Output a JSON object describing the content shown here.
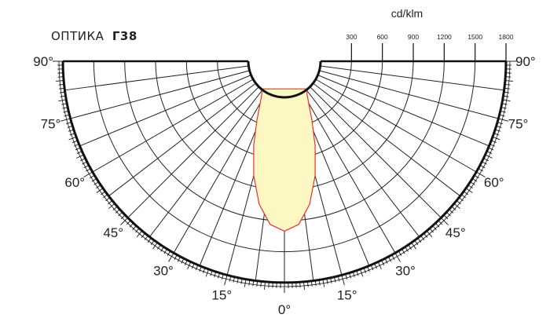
{
  "title": {
    "prefix": "ОПТИКА",
    "optic": "Г38"
  },
  "colors": {
    "curve_stroke": "#e8312a",
    "curve_fill": "#fdf7c3",
    "grid": "#222222",
    "frame": "#111111",
    "background": "#ffffff"
  },
  "chart_data": {
    "type": "polar",
    "unit_label": "cd/klm",
    "radial_ticks": [
      300,
      600,
      900,
      1200,
      1500,
      1800
    ],
    "radial_range": [
      0,
      1800
    ],
    "radial_tick_labels": [
      "300",
      "600",
      "900",
      "1200",
      "1500",
      "1800"
    ],
    "angle_labels_left": [
      "90°",
      "75°",
      "60°",
      "45°",
      "30°",
      "15°"
    ],
    "angle_labels_right": [
      "90°",
      "75°",
      "60°",
      "45°",
      "30°",
      "15°"
    ],
    "angle_label_bottom": "0°",
    "angle_grid_step_deg": 7.5,
    "grid": true,
    "series": [
      {
        "curve": [
          {
            "angle": 0,
            "value": 1300
          },
          {
            "angle": 5,
            "value": 1240
          },
          {
            "angle": 10,
            "value": 1060
          },
          {
            "angle": 15,
            "value": 800
          },
          {
            "angle": 20,
            "value": 520
          },
          {
            "angle": 25,
            "value": 280
          },
          {
            "angle": 30,
            "value": 120
          },
          {
            "angle": 35,
            "value": 30
          },
          {
            "angle": 40,
            "value": 0
          }
        ]
      }
    ]
  }
}
